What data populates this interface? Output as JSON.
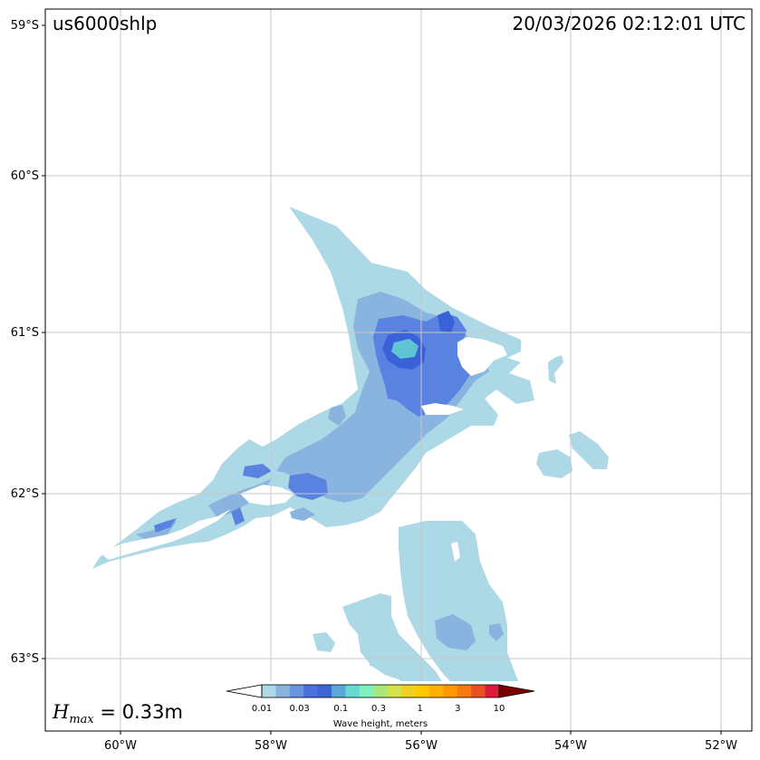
{
  "map": {
    "event_id": "us6000shlp",
    "timestamp": "20/03/2026 02:12:01 UTC",
    "hmax": {
      "symbol_base": "H",
      "symbol_sub": "max",
      "value_text": " = 0.33m"
    },
    "lon_ticks": [
      "60°W",
      "58°W",
      "56°W",
      "54°W",
      "52°W"
    ],
    "lat_ticks": [
      "59°S",
      "60°S",
      "61°S",
      "62°S",
      "63°S"
    ],
    "colors": {
      "ocean": "#ffffff",
      "grid": "#c8c8c8",
      "frame": "#000000",
      "band_001": "#add8e6",
      "band_003": "#8ab4e0",
      "band_01": "#5a82e0",
      "band_02": "#3a62d8",
      "band_03": "#5fc5d5"
    }
  },
  "colorbar": {
    "title": "Wave height, meters",
    "tick_labels": [
      "0.01",
      "0.03",
      "0.1",
      "0.3",
      "1",
      "3",
      "10"
    ],
    "colors": [
      "#add8e6",
      "#8ab4e0",
      "#6a93e2",
      "#4a70e0",
      "#3f64d6",
      "#5aa8d8",
      "#66d9d0",
      "#7ff0c0",
      "#a8e87a",
      "#d4e24a",
      "#f0d020",
      "#ffc800",
      "#ffb000",
      "#ff9800",
      "#f67a10",
      "#e85020",
      "#dc1c3c"
    ],
    "under_color": "#ffffff",
    "over_color": "#7a0000"
  }
}
